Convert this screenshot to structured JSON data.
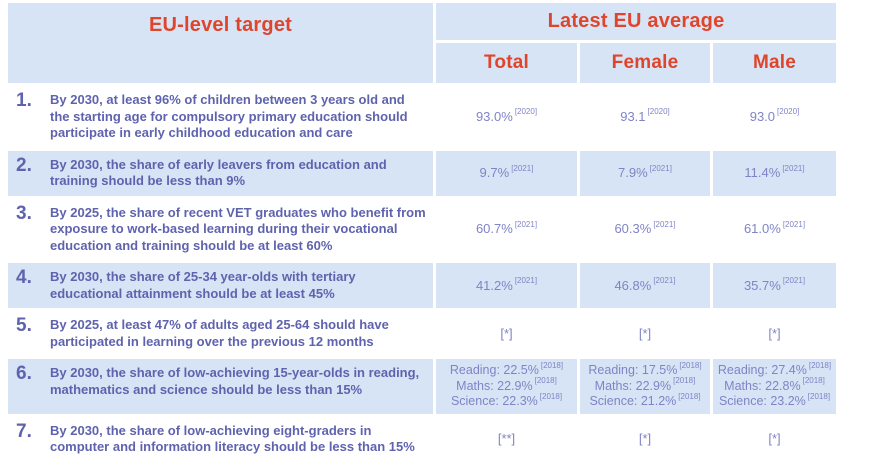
{
  "header": {
    "target_column": "EU-level target",
    "average_column": "Latest EU average",
    "sub_columns": [
      "Total",
      "Female",
      "Male"
    ]
  },
  "rows": [
    {
      "num": "1.",
      "target": "By 2030, at least 96% of children between 3 years old and the starting age for compulsory primary education should participate in early childhood education and care",
      "total": [
        {
          "v": "93.0%",
          "y": "[2020]"
        }
      ],
      "female": [
        {
          "v": "93.1",
          "y": "[2020]"
        }
      ],
      "male": [
        {
          "v": "93.0",
          "y": "[2020]"
        }
      ]
    },
    {
      "num": "2.",
      "target": "By 2030, the share of early leavers from education and training should be less than 9%",
      "total": [
        {
          "v": "9.7%",
          "y": "[2021]"
        }
      ],
      "female": [
        {
          "v": "7.9%",
          "y": "[2021]"
        }
      ],
      "male": [
        {
          "v": "11.4%",
          "y": "[2021]"
        }
      ]
    },
    {
      "num": "3.",
      "target": "By 2025, the share of recent VET graduates who benefit from exposure to work-based learning during their vocational education and training should be at least 60%",
      "total": [
        {
          "v": "60.7%",
          "y": "[2021]"
        }
      ],
      "female": [
        {
          "v": "60.3%",
          "y": "[2021]"
        }
      ],
      "male": [
        {
          "v": "61.0%",
          "y": "[2021]"
        }
      ]
    },
    {
      "num": "4.",
      "target": "By 2030, the share of 25-34 year-olds with tertiary educational attainment should be at least 45%",
      "total": [
        {
          "v": "41.2%",
          "y": "[2021]"
        }
      ],
      "female": [
        {
          "v": "46.8%",
          "y": "[2021]"
        }
      ],
      "male": [
        {
          "v": "35.7%",
          "y": "[2021]"
        }
      ]
    },
    {
      "num": "5.",
      "target": "By 2025, at least 47% of adults aged 25-64 should have participated in learning over the previous 12 months",
      "total": [
        {
          "v": "[*]",
          "y": ""
        }
      ],
      "female": [
        {
          "v": "[*]",
          "y": ""
        }
      ],
      "male": [
        {
          "v": "[*]",
          "y": ""
        }
      ]
    },
    {
      "num": "6.",
      "target": "By 2030, the share of low-achieving 15-year-olds in reading, mathematics and science should be less than 15%",
      "total": [
        {
          "v": "Reading: 22.5%",
          "y": "[2018]"
        },
        {
          "v": "Maths: 22.9%",
          "y": "[2018]"
        },
        {
          "v": "Science: 22.3%",
          "y": "[2018]"
        }
      ],
      "female": [
        {
          "v": "Reading: 17.5%",
          "y": "[2018]"
        },
        {
          "v": "Maths: 22.9%",
          "y": "[2018]"
        },
        {
          "v": "Science: 21.2%",
          "y": "[2018]"
        }
      ],
      "male": [
        {
          "v": "Reading: 27.4%",
          "y": "[2018]"
        },
        {
          "v": "Maths: 22.8%",
          "y": "[2018]"
        },
        {
          "v": "Science: 23.2%",
          "y": "[2018]"
        }
      ]
    },
    {
      "num": "7.",
      "target": "By 2030, the share of low-achieving eight-graders in computer and information literacy should be less than 15%",
      "total": [
        {
          "v": "[**]",
          "y": ""
        }
      ],
      "female": [
        {
          "v": "[*]",
          "y": ""
        }
      ],
      "male": [
        {
          "v": "[*]",
          "y": ""
        }
      ]
    }
  ],
  "colors": {
    "header_text": "#E0452B",
    "cell_background": "#D6E4F5",
    "target_text": "#5F63AE",
    "value_text": "#8084C5"
  }
}
